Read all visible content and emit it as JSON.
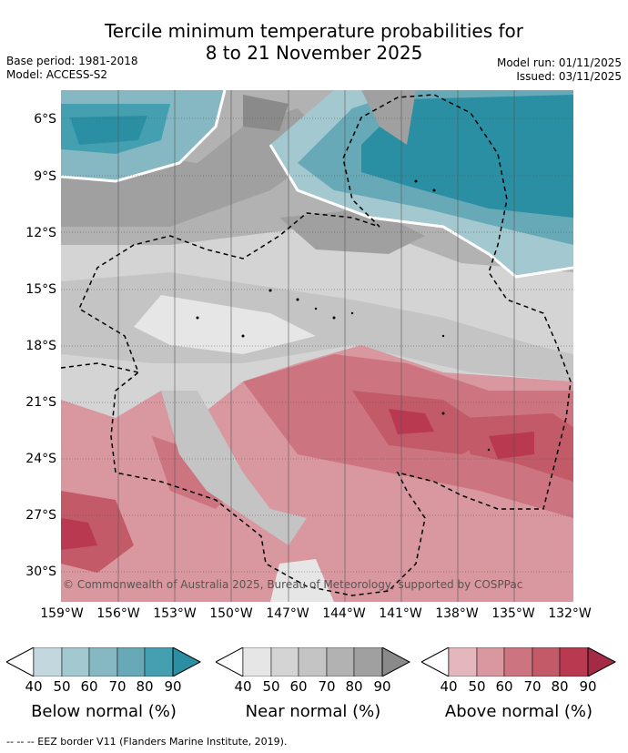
{
  "title": "Tercile minimum temperature probabilities for",
  "subtitle": "8 to 21 November 2025",
  "base_period": "Base period: 1981-2018",
  "model": "Model: ACCESS-S2",
  "model_run": "Model run: 01/11/2025",
  "issued": "Issued: 03/11/2025",
  "copyright": "© Commonwealth of Australia 2025, Bureau of Meteorology, supported by COSPPac",
  "lat_labels": [
    "6°S",
    "9°S",
    "12°S",
    "15°S",
    "18°S",
    "21°S",
    "24°S",
    "27°S",
    "30°S"
  ],
  "lon_labels": [
    "159°W",
    "156°W",
    "153°W",
    "150°W",
    "147°W",
    "144°W",
    "141°W",
    "138°W",
    "135°W",
    "132°W"
  ],
  "legend": {
    "below": {
      "label": "Below normal (%)",
      "ticks": [
        "40",
        "50",
        "60",
        "70",
        "80",
        "90"
      ],
      "colors": [
        "#c2d8de",
        "#a4c8cf",
        "#86b8c3",
        "#67a9b7",
        "#44a0b1",
        "#2a8fa3"
      ]
    },
    "near": {
      "label": "Near normal (%)",
      "ticks": [
        "40",
        "50",
        "60",
        "70",
        "80",
        "90"
      ],
      "colors": [
        "#e6e6e6",
        "#d4d4d4",
        "#c4c4c4",
        "#b2b2b2",
        "#a0a0a0",
        "#8a8a8a"
      ]
    },
    "above": {
      "label": "Above normal (%)",
      "ticks": [
        "40",
        "50",
        "60",
        "70",
        "80",
        "90"
      ],
      "colors": [
        "#e4b7bd",
        "#d9979f",
        "#cc7580",
        "#c35a67",
        "#b83950",
        "#a52a45"
      ]
    }
  },
  "footer": "--  --  -- EEZ border V11 (Flanders Marine Institute, 2019)."
}
